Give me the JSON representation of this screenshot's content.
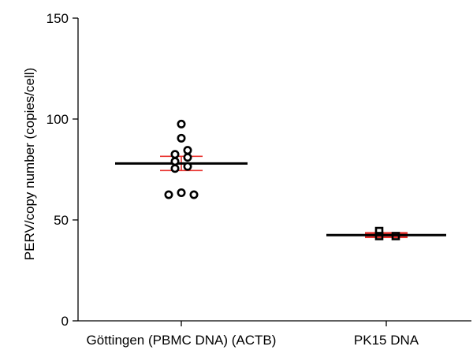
{
  "chart_data": {
    "type": "scatter",
    "title": "",
    "xlabel": "",
    "ylabel": "PERV/copy number (copies/cell)",
    "ylim": [
      0,
      150
    ],
    "yticks": [
      0,
      50,
      100,
      150
    ],
    "grid": false,
    "categories": [
      "Göttingen (PBMC DNA) (ACTB)",
      "PK15 DNA"
    ],
    "series": [
      {
        "category": "Göttingen (PBMC DNA) (ACTB)",
        "marker": "circle",
        "points": [
          97.5,
          90.5,
          84.5,
          82.5,
          81.0,
          79.0,
          76.5,
          75.5,
          63.5,
          62.5,
          62.5
        ],
        "mean": 78,
        "error_low": 74.5,
        "error_high": 81.5
      },
      {
        "category": "PK15 DNA",
        "marker": "square",
        "points": [
          44.5,
          42.0,
          42.0
        ],
        "mean": 42.5,
        "error_low": 41.0,
        "error_high": 44.0
      }
    ],
    "colors": {
      "points": "#000000",
      "mean_line": "#000000",
      "error_bar": "#e8322e",
      "axis": "#000000"
    }
  }
}
